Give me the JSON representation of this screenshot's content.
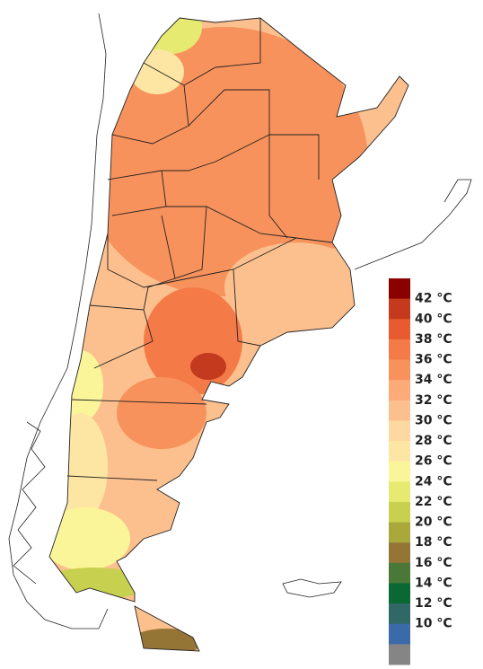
{
  "legend": {
    "colors": [
      "#8b0000",
      "#c43a1e",
      "#e85a30",
      "#f47a48",
      "#f8925c",
      "#fbaa78",
      "#fcc08e",
      "#fdd8a0",
      "#fde6a4",
      "#fbf59a",
      "#e6ea70",
      "#c8d050",
      "#aaa83a",
      "#957535",
      "#4a7838",
      "#0a6832",
      "#306868",
      "#3a6aa8",
      "#858585"
    ],
    "labels": [
      "42 °C",
      "40 °C",
      "38 °C",
      "36 °C",
      "34 °C",
      "32 °C",
      "30 °C",
      "28 °C",
      "26 °C",
      "24 °C",
      "22 °C",
      "20 °C",
      "18 °C",
      "16 °C",
      "14 °C",
      "12 °C",
      "10 °C"
    ]
  }
}
